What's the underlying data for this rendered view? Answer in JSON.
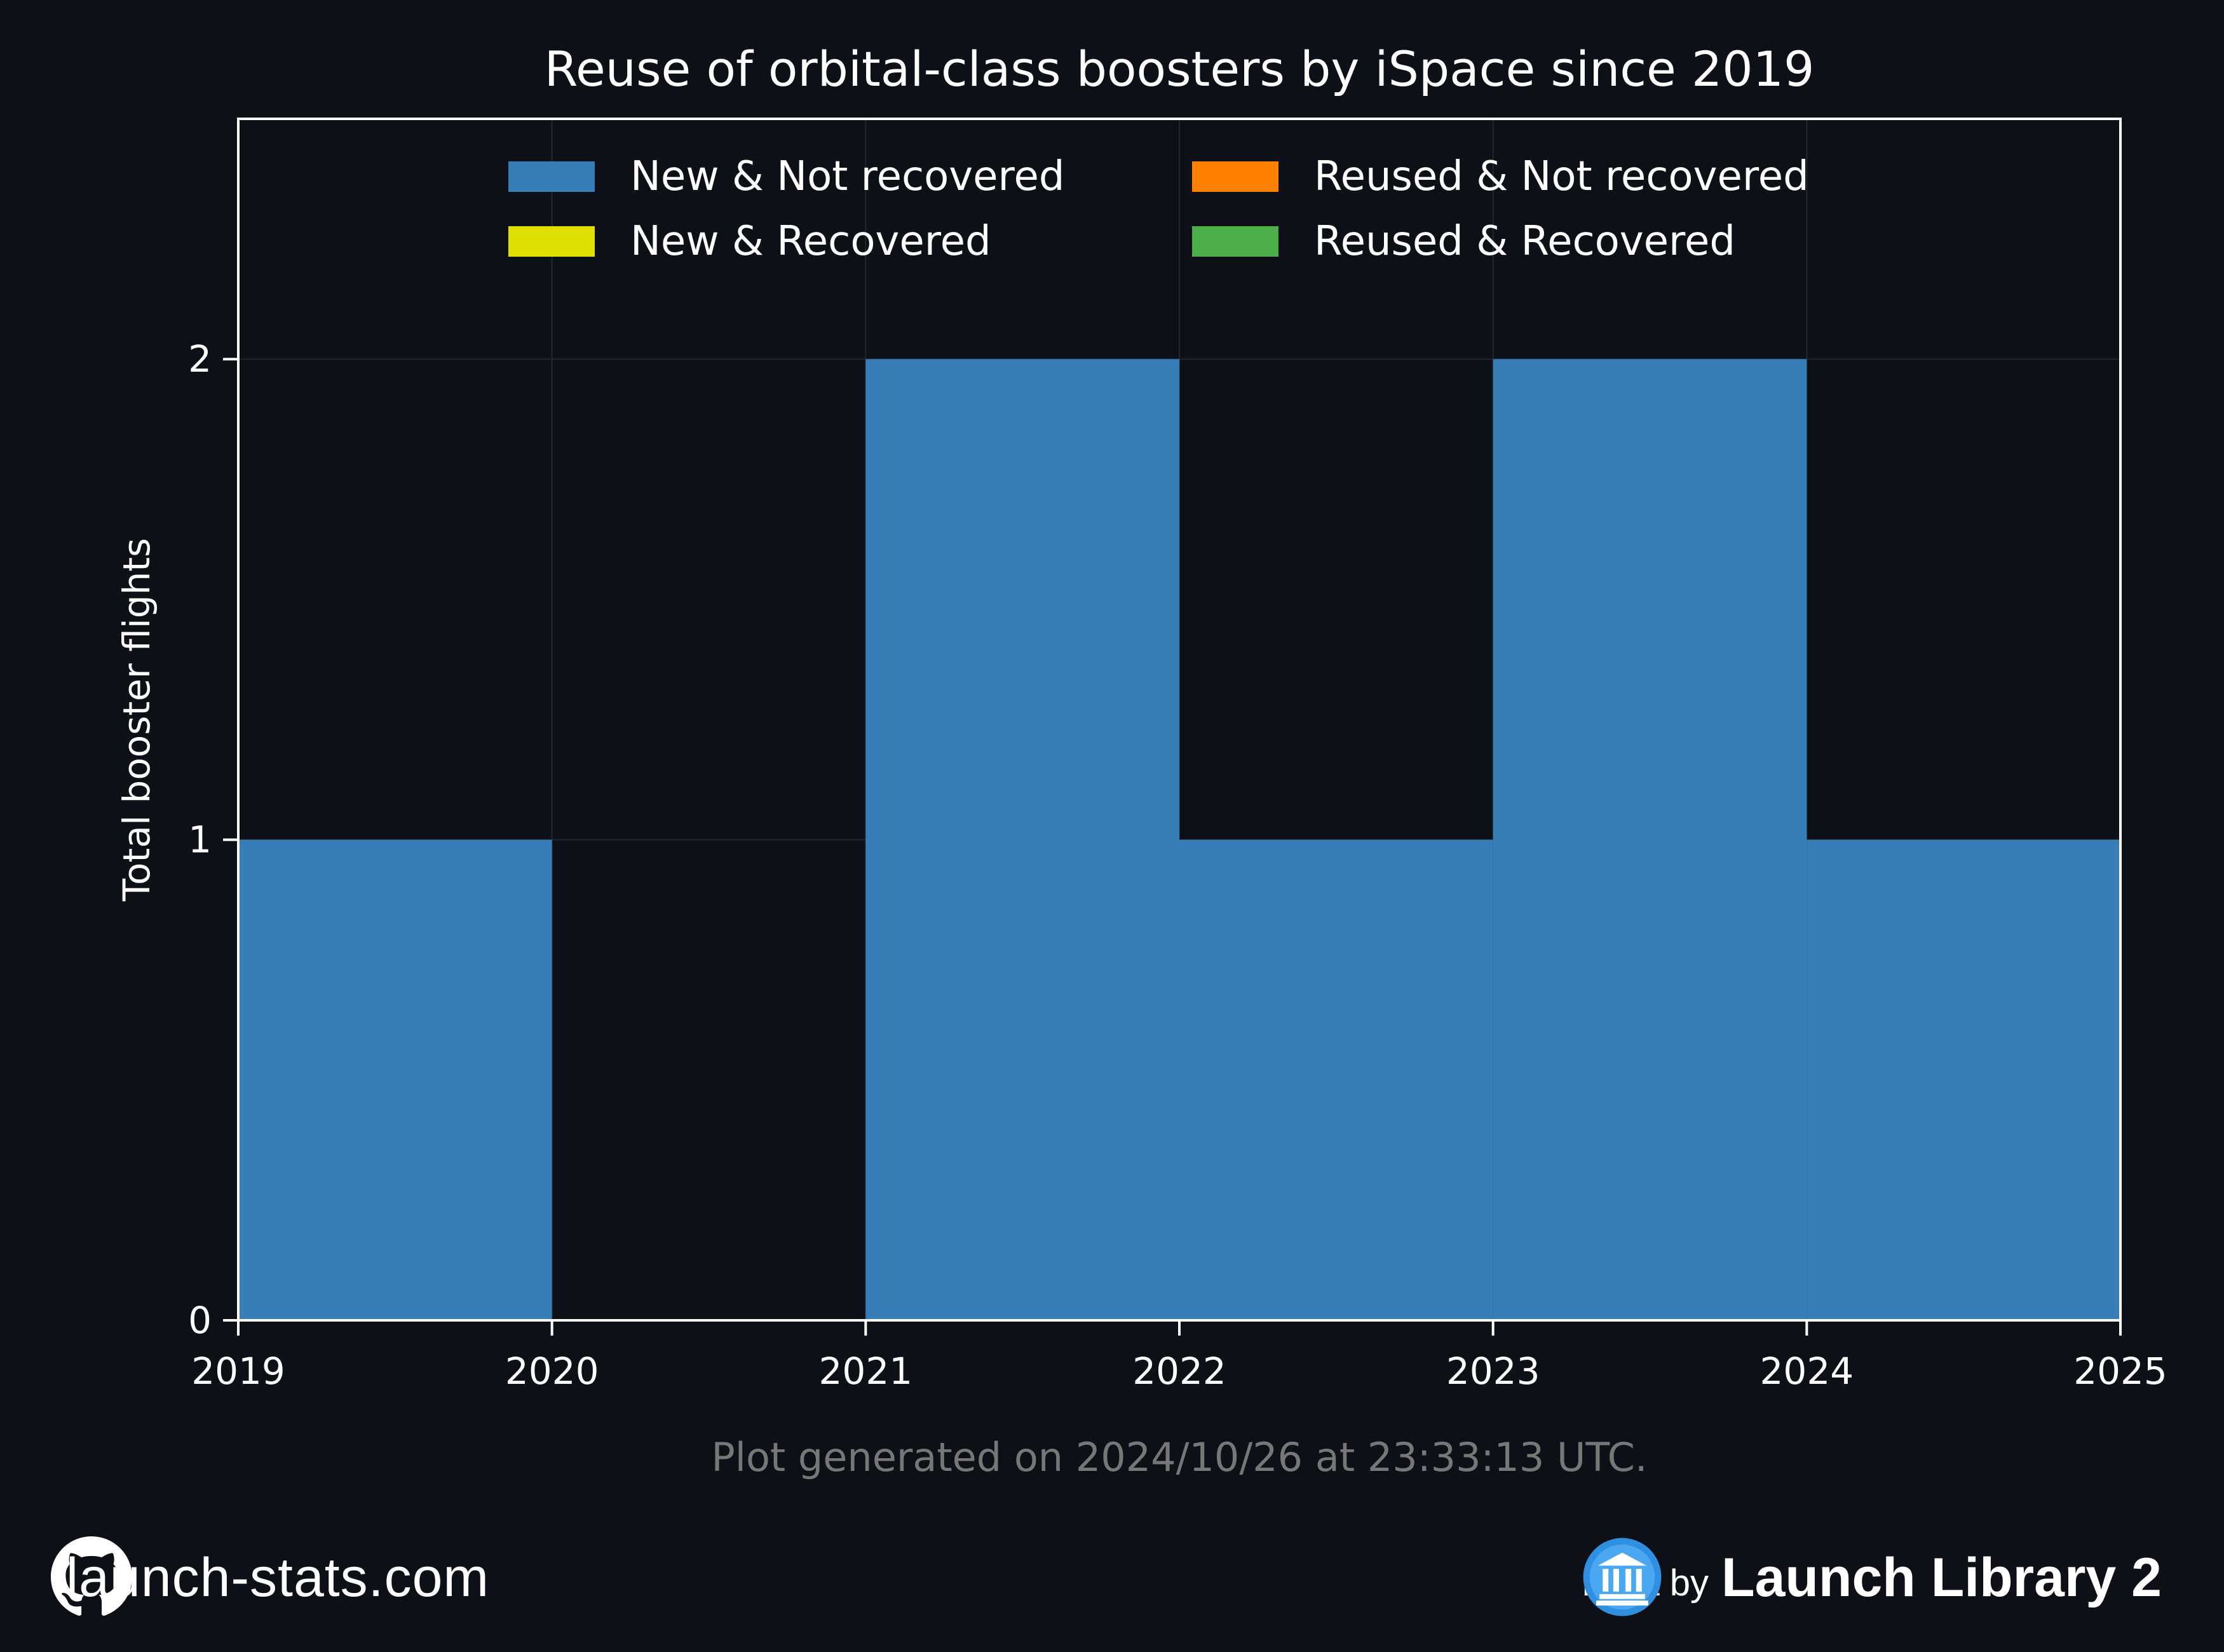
{
  "chart_data": {
    "type": "bar",
    "stacked": true,
    "title": "Reuse of orbital-class boosters by iSpace since 2019",
    "xlabel": "",
    "ylabel": "Total booster flights",
    "x_bin_edges": [
      2019,
      2020,
      2021,
      2022,
      2023,
      2024,
      2025
    ],
    "xticks": [
      "2019",
      "2020",
      "2021",
      "2022",
      "2023",
      "2024",
      "2025"
    ],
    "ylim": [
      0,
      2.5
    ],
    "yticks": [
      "0",
      "1",
      "2"
    ],
    "grid": true,
    "legend_position": "top-center",
    "series": [
      {
        "name": "New & Not recovered",
        "color": "#377eb8",
        "values": [
          1,
          0,
          2,
          1,
          2,
          1
        ]
      },
      {
        "name": "New & Recovered",
        "color": "#dede00",
        "values": [
          0,
          0,
          0,
          0,
          0,
          0
        ]
      },
      {
        "name": "Reused & Not recovered",
        "color": "#ff7f00",
        "values": [
          0,
          0,
          0,
          0,
          0,
          0
        ]
      },
      {
        "name": "Reused & Recovered",
        "color": "#4daf4a",
        "values": [
          0,
          0,
          0,
          0,
          0,
          0
        ]
      }
    ]
  },
  "footnote": "Plot generated on 2024/10/26 at 23:33:13 UTC.",
  "footer": {
    "site": "launch-stats.com",
    "data_by": "Data by",
    "source": "Launch Library 2"
  },
  "icons": {
    "left": "github-icon",
    "right": "launch-library-icon"
  },
  "colors": {
    "background": "#0d1117",
    "text": "#ffffff",
    "footnote": "#777777"
  }
}
